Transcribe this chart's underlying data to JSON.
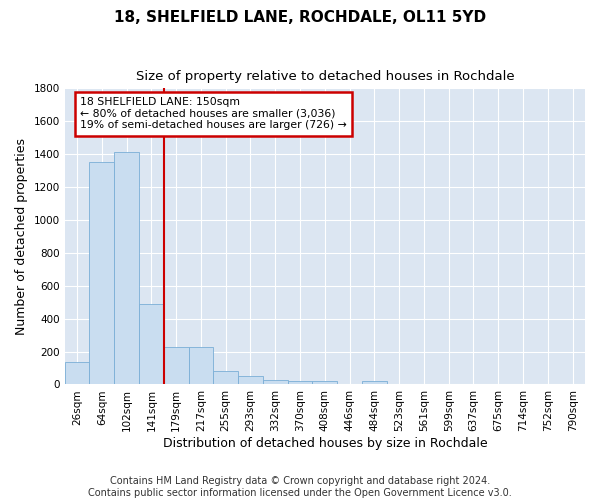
{
  "title": "18, SHELFIELD LANE, ROCHDALE, OL11 5YD",
  "subtitle": "Size of property relative to detached houses in Rochdale",
  "xlabel": "Distribution of detached houses by size in Rochdale",
  "ylabel": "Number of detached properties",
  "categories": [
    "26sqm",
    "64sqm",
    "102sqm",
    "141sqm",
    "179sqm",
    "217sqm",
    "255sqm",
    "293sqm",
    "332sqm",
    "370sqm",
    "408sqm",
    "446sqm",
    "484sqm",
    "523sqm",
    "561sqm",
    "599sqm",
    "637sqm",
    "675sqm",
    "714sqm",
    "752sqm",
    "790sqm"
  ],
  "values": [
    135,
    1355,
    1415,
    490,
    230,
    230,
    80,
    50,
    30,
    20,
    20,
    0,
    20,
    0,
    0,
    0,
    0,
    0,
    0,
    0,
    0
  ],
  "bar_color": "#c9ddf0",
  "bar_edge_color": "#7aaed6",
  "vline_color": "#cc0000",
  "vline_x": 3.5,
  "annotation_line1": "18 SHELFIELD LANE: 150sqm",
  "annotation_line2": "← 80% of detached houses are smaller (3,036)",
  "annotation_line3": "19% of semi-detached houses are larger (726) →",
  "annotation_box_color": "#cc0000",
  "ylim": [
    0,
    1800
  ],
  "yticks": [
    0,
    200,
    400,
    600,
    800,
    1000,
    1200,
    1400,
    1600,
    1800
  ],
  "footer": "Contains HM Land Registry data © Crown copyright and database right 2024.\nContains public sector information licensed under the Open Government Licence v3.0.",
  "fig_bg_color": "#ffffff",
  "plot_bg_color": "#dce6f2",
  "grid_color": "#ffffff",
  "title_fontsize": 11,
  "subtitle_fontsize": 9.5,
  "axis_label_fontsize": 9,
  "tick_fontsize": 7.5,
  "footer_fontsize": 7
}
